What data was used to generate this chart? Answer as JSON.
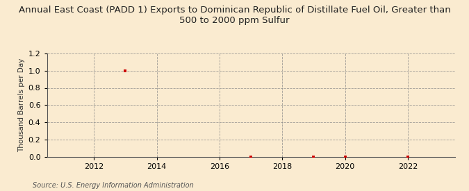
{
  "title": "Annual East Coast (PADD 1) Exports to Dominican Republic of Distillate Fuel Oil, Greater than\n500 to 2000 ppm Sulfur",
  "ylabel": "Thousand Barrels per Day",
  "source": "Source: U.S. Energy Information Administration",
  "background_color": "#faebd0",
  "plot_bg_color": "#faebd0",
  "x_data": [
    2013,
    2017,
    2019,
    2020,
    2022
  ],
  "y_data": [
    1.0,
    0.0,
    0.0,
    0.0,
    0.0
  ],
  "marker_color": "#cc0000",
  "xlim": [
    2010.5,
    2023.5
  ],
  "ylim": [
    0.0,
    1.2
  ],
  "yticks": [
    0.0,
    0.2,
    0.4,
    0.6,
    0.8,
    1.0,
    1.2
  ],
  "xticks": [
    2012,
    2014,
    2016,
    2018,
    2020,
    2022
  ],
  "title_fontsize": 9.5,
  "label_fontsize": 7.5,
  "tick_fontsize": 8,
  "source_fontsize": 7
}
